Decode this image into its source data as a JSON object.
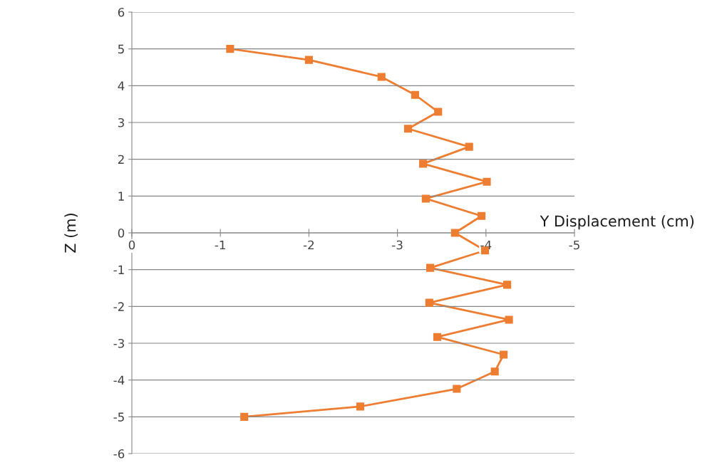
{
  "chart_data": {
    "type": "line",
    "xlabel": "Y Displacement (cm)",
    "ylabel": "Z (m)",
    "series": [
      {
        "color": "#ed7d31",
        "x": [
          -1.11,
          -2.0,
          -2.82,
          -3.2,
          -3.46,
          -3.12,
          -3.81,
          -3.29,
          -4.01,
          -3.32,
          -3.95,
          -3.65,
          -3.99,
          -3.37,
          -4.24,
          -3.36,
          -4.26,
          -3.45,
          -4.2,
          -4.1,
          -3.67,
          -2.58,
          -1.27
        ],
        "values": [
          5.0,
          4.7,
          4.24,
          3.75,
          3.29,
          2.83,
          2.34,
          1.88,
          1.39,
          0.93,
          0.46,
          0.0,
          -0.48,
          -0.95,
          -1.41,
          -1.9,
          -2.36,
          -2.83,
          -3.31,
          -3.77,
          -4.24,
          -4.72,
          -5.0
        ]
      }
    ],
    "xlim": [
      0,
      -5
    ],
    "xticks": [
      0,
      -1,
      -2,
      -3,
      -4,
      -5
    ],
    "ylim": [
      -6,
      6
    ],
    "yticks": [
      -6,
      -5,
      -4,
      -3,
      -2,
      -1,
      0,
      1,
      2,
      3,
      4,
      5,
      6
    ],
    "grid": "y",
    "legend": false,
    "marker": "square",
    "line_style": "solid"
  }
}
